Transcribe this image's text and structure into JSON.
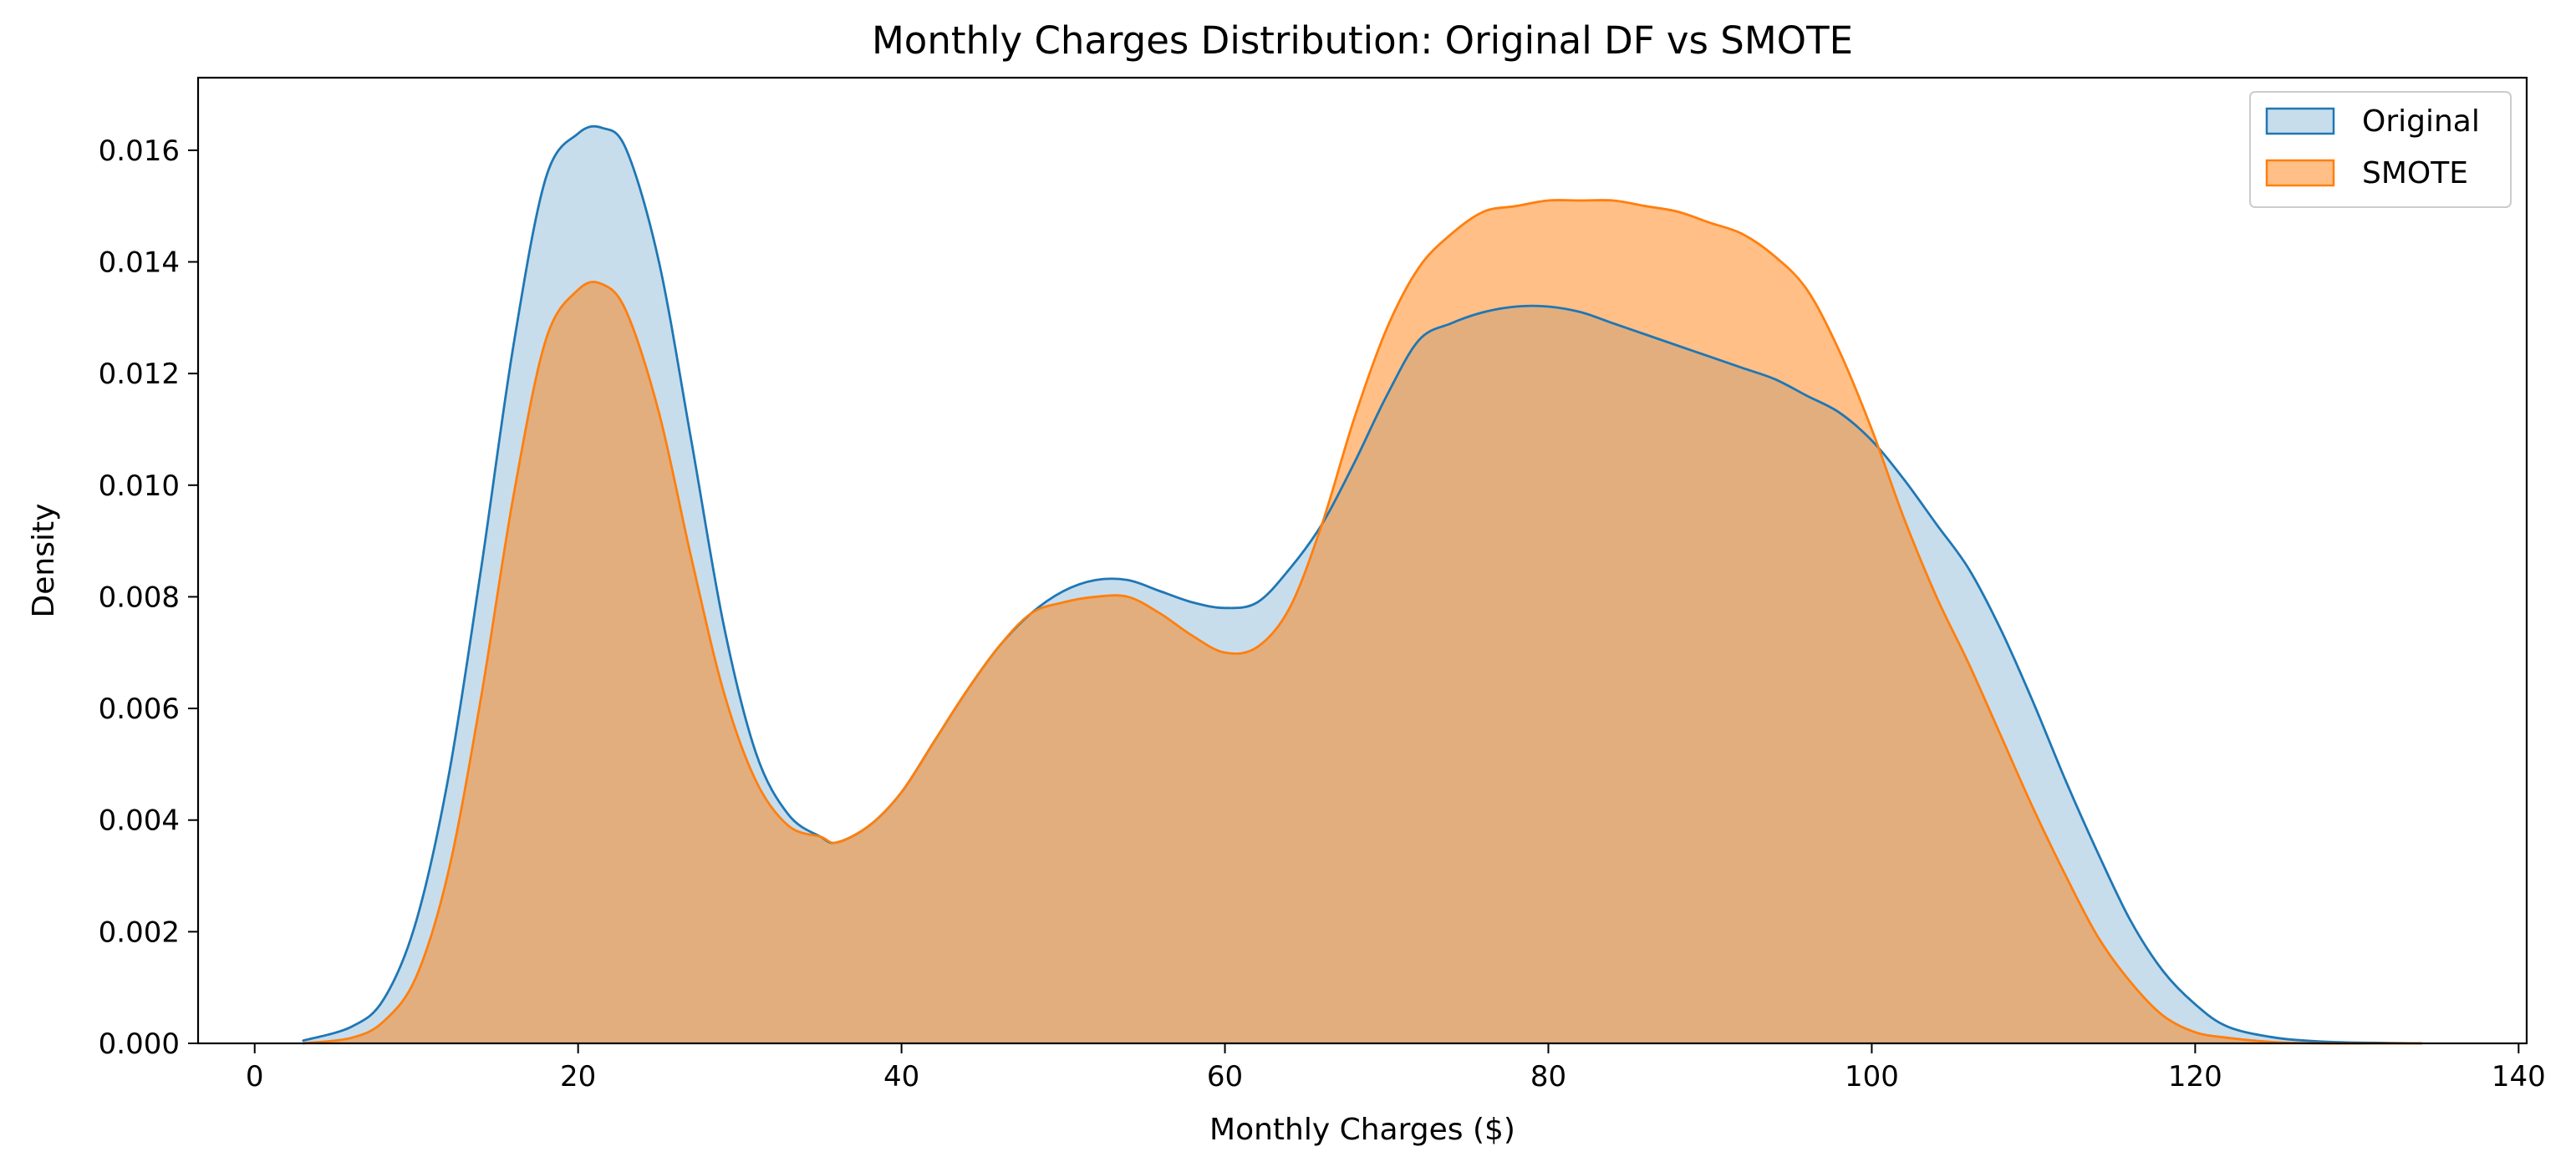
{
  "chart_data": {
    "type": "area",
    "title": "Monthly Charges Distribution: Original DF vs SMOTE",
    "xlabel": "Monthly Charges ($)",
    "ylabel": "Density",
    "xlim": [
      -3.5,
      140.5
    ],
    "ylim": [
      0,
      0.0173
    ],
    "x_ticks": [
      0,
      20,
      40,
      60,
      80,
      100,
      120,
      140
    ],
    "x_tick_labels": [
      "0",
      "20",
      "40",
      "60",
      "80",
      "100",
      "120",
      "140"
    ],
    "y_ticks": [
      0,
      0.002,
      0.004,
      0.006,
      0.008,
      0.01,
      0.012,
      0.014,
      0.016
    ],
    "y_tick_labels": [
      "0.000",
      "0.002",
      "0.004",
      "0.006",
      "0.008",
      "0.010",
      "0.012",
      "0.014",
      "0.016"
    ],
    "grid": false,
    "legend_position": "top-right",
    "series": [
      {
        "name": "Original",
        "line_color": "#1f77b4",
        "fill_color": "#1f77b4",
        "fill_opacity": 0.25,
        "x": [
          3,
          6,
          8,
          10,
          12,
          14,
          16,
          18,
          20,
          21.5,
          23,
          25,
          27,
          29,
          31,
          33,
          35,
          36,
          38,
          40,
          42,
          44,
          46,
          48,
          50,
          52,
          54,
          56,
          58,
          60,
          62,
          64,
          66,
          68,
          70,
          72,
          74,
          76,
          78,
          80,
          82,
          84,
          86,
          88,
          90,
          92,
          94,
          96,
          98,
          100,
          102,
          104,
          106,
          108,
          110,
          112,
          114,
          116,
          118,
          120,
          122,
          125,
          128,
          131,
          134
        ],
        "y": [
          5e-05,
          0.0003,
          0.0008,
          0.0022,
          0.0048,
          0.0085,
          0.0125,
          0.0155,
          0.0163,
          0.0164,
          0.016,
          0.014,
          0.0108,
          0.0075,
          0.0052,
          0.0041,
          0.0037,
          0.0036,
          0.0039,
          0.0045,
          0.0054,
          0.0063,
          0.0071,
          0.0077,
          0.0081,
          0.0083,
          0.0083,
          0.0081,
          0.0079,
          0.0078,
          0.0079,
          0.0085,
          0.0093,
          0.0104,
          0.0116,
          0.0126,
          0.0129,
          0.0131,
          0.0132,
          0.0132,
          0.0131,
          0.0129,
          0.0127,
          0.0125,
          0.0123,
          0.0121,
          0.0119,
          0.0116,
          0.0113,
          0.0108,
          0.0101,
          0.0093,
          0.0085,
          0.0074,
          0.0061,
          0.0047,
          0.0034,
          0.0022,
          0.0013,
          0.0007,
          0.0003,
          0.0001,
          3e-05,
          1e-05,
          0.0
        ],
        "peak": 0.0164
      },
      {
        "name": "SMOTE",
        "line_color": "#ff7f0e",
        "fill_color": "#ff7f0e",
        "fill_opacity": 0.5,
        "x": [
          3,
          6,
          8,
          10,
          12,
          14,
          16,
          18,
          20,
          21.5,
          23,
          25,
          27,
          29,
          31,
          33,
          35,
          36,
          38,
          40,
          42,
          44,
          46,
          48,
          50,
          52,
          54,
          56,
          58,
          60,
          62,
          64,
          66,
          68,
          70,
          72,
          74,
          76,
          78,
          80,
          82,
          84,
          86,
          88,
          90,
          92,
          94,
          96,
          98,
          100,
          102,
          104,
          106,
          108,
          110,
          112,
          114,
          116,
          118,
          120,
          122,
          125,
          128,
          131,
          134
        ],
        "y": [
          0.0,
          0.0001,
          0.0004,
          0.0012,
          0.0031,
          0.0062,
          0.0098,
          0.0126,
          0.0135,
          0.0136,
          0.0131,
          0.0113,
          0.0087,
          0.0063,
          0.0047,
          0.0039,
          0.0037,
          0.0036,
          0.0039,
          0.0045,
          0.0054,
          0.0063,
          0.0071,
          0.0077,
          0.0079,
          0.008,
          0.008,
          0.0077,
          0.0073,
          0.007,
          0.0071,
          0.0078,
          0.0093,
          0.0112,
          0.0128,
          0.0139,
          0.0145,
          0.0149,
          0.015,
          0.0151,
          0.0151,
          0.0151,
          0.015,
          0.0149,
          0.0147,
          0.0145,
          0.0141,
          0.0135,
          0.0124,
          0.011,
          0.0094,
          0.008,
          0.0068,
          0.0055,
          0.0042,
          0.003,
          0.0019,
          0.0011,
          0.0005,
          0.0002,
          0.0001,
          2e-05,
          0.0,
          0.0,
          0.0
        ],
        "peak": 0.0151
      }
    ]
  }
}
